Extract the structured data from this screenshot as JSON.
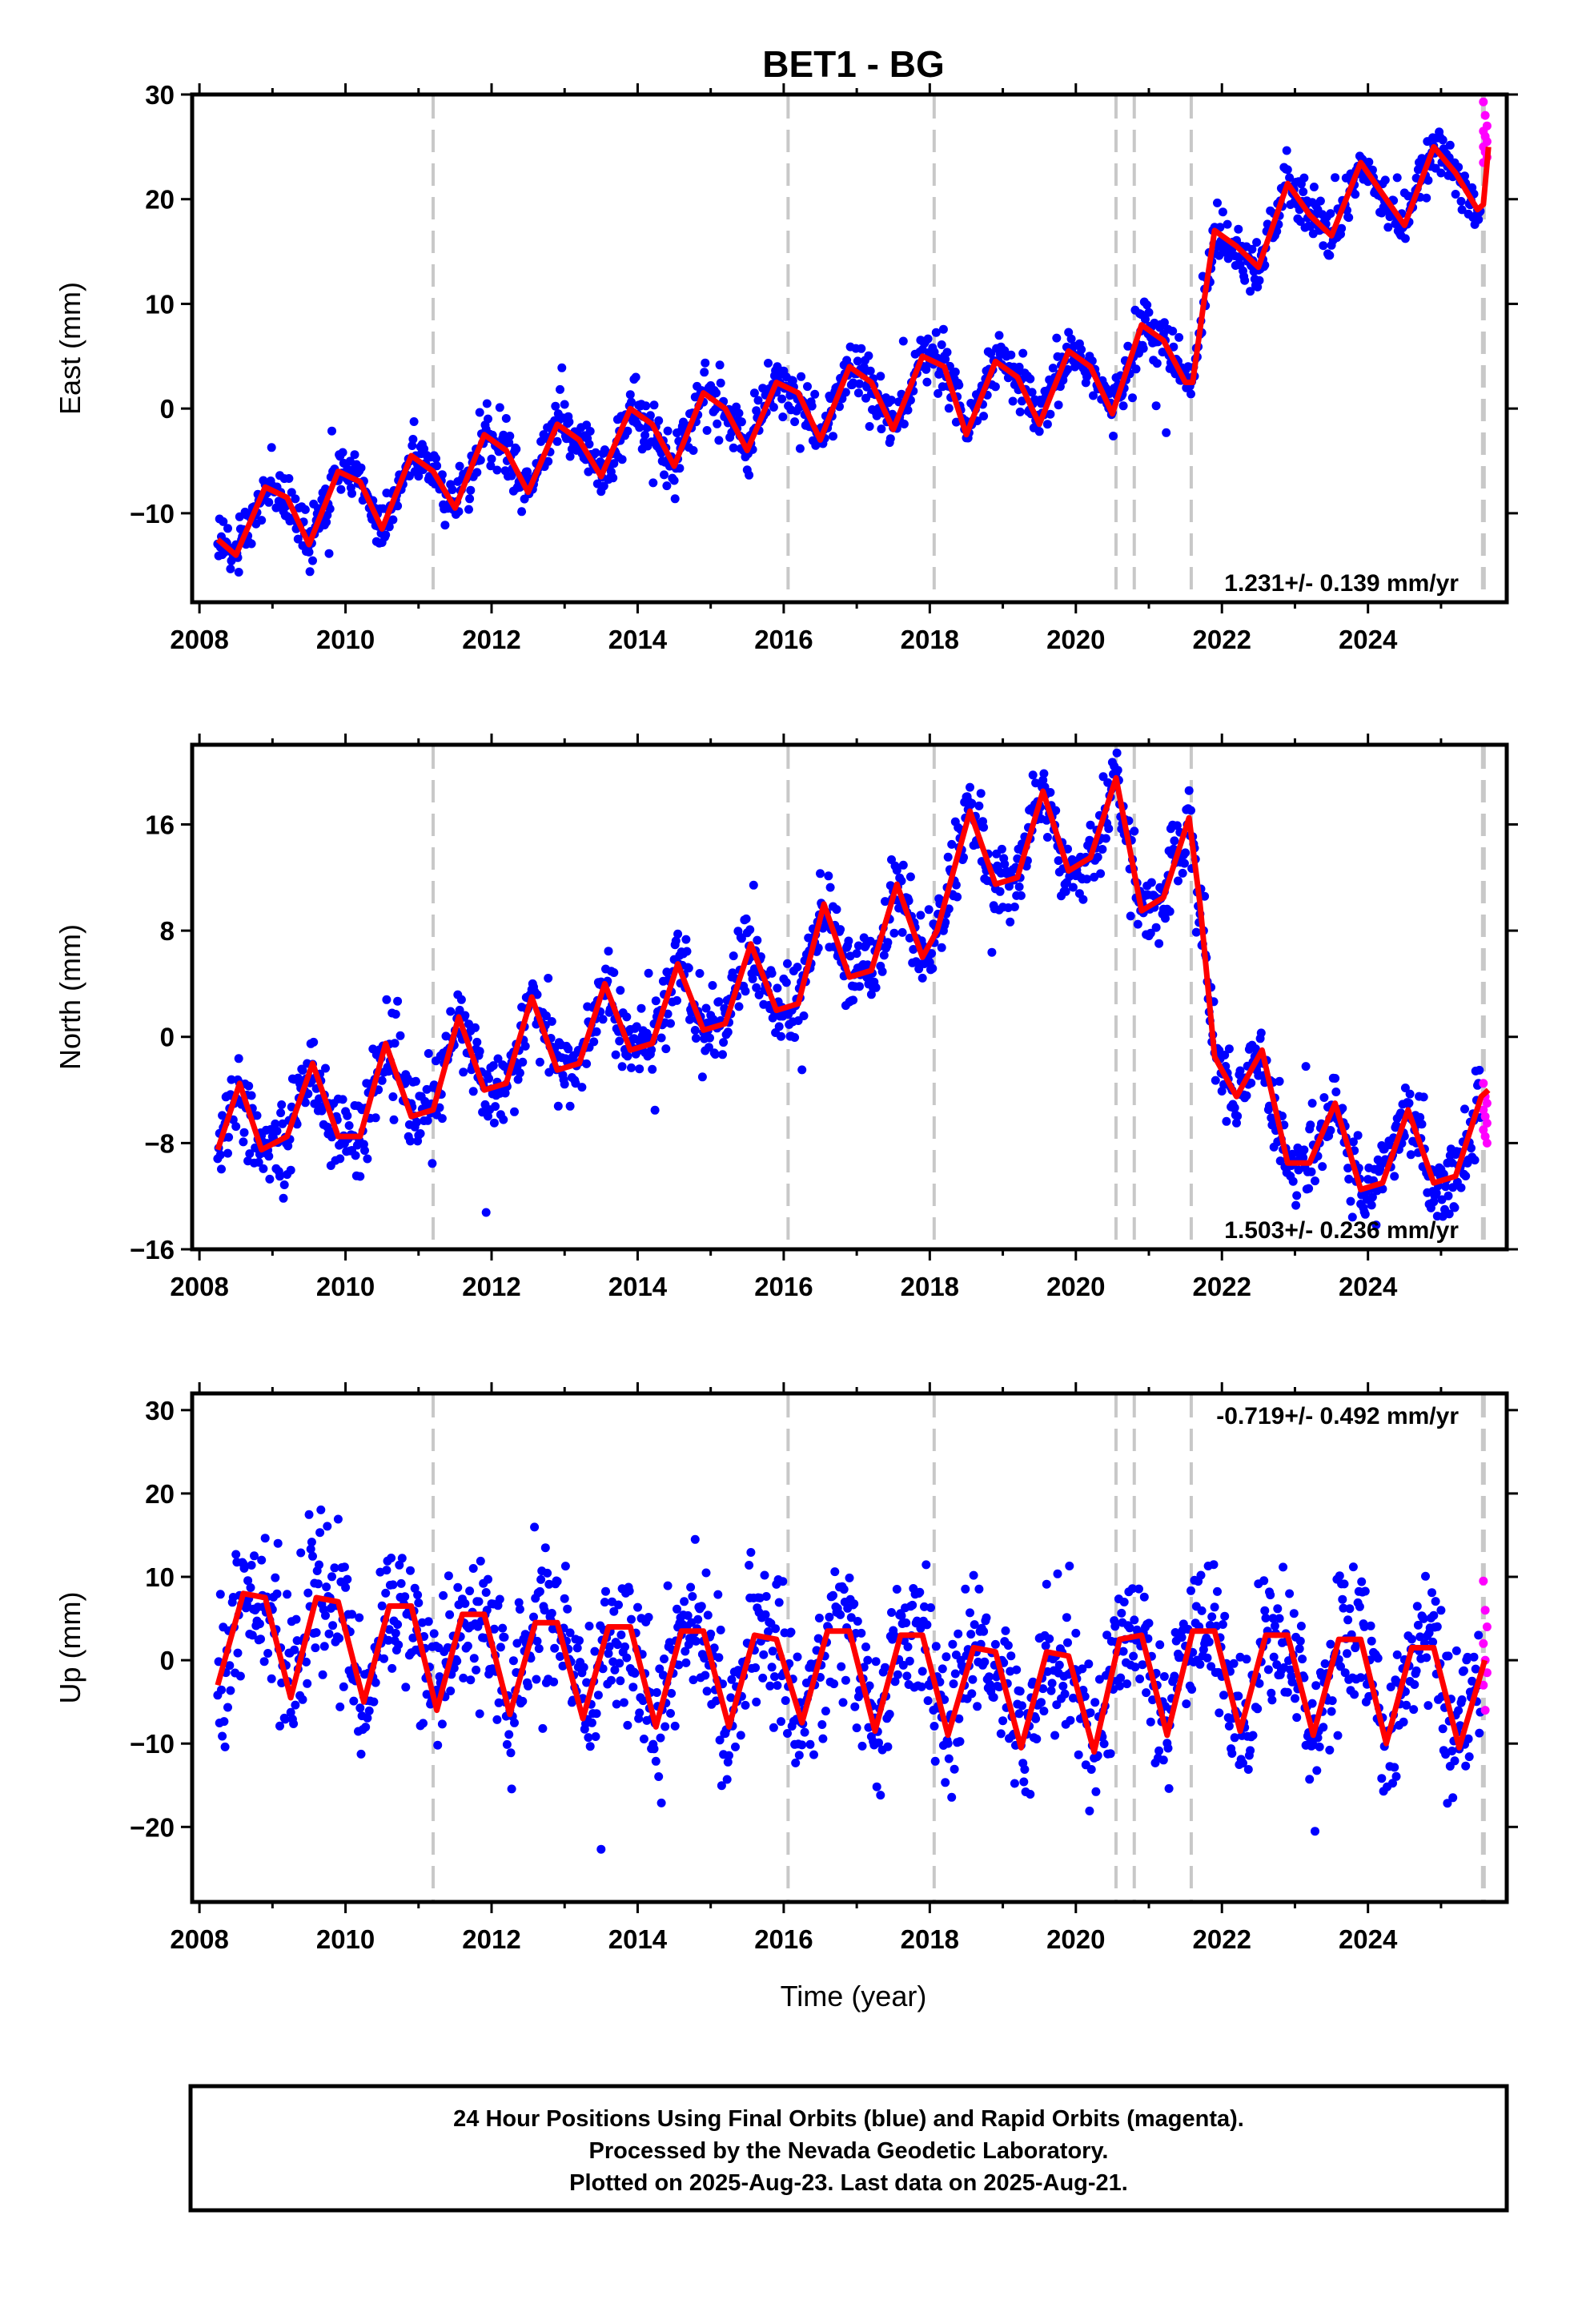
{
  "chart_data": {
    "type": "scatter",
    "title": "BET1 - BG",
    "xlabel": "Time (year)",
    "x_ticks": [
      "2008",
      "2010",
      "2012",
      "2014",
      "2016",
      "2018",
      "2020",
      "2022",
      "2024"
    ],
    "xlim": [
      2007.9,
      2025.9
    ],
    "colors": {
      "final": "#0000ff",
      "rapid": "#ff00ff",
      "model": "#ff0000",
      "steps": "#c8c8c8"
    },
    "step_lines": [
      2011.2,
      2016.06,
      2018.06,
      2020.55,
      2020.8,
      2021.58,
      2025.58
    ],
    "legend": [
      "24 Hour Positions Using Final Orbits (blue) and Rapid Orbits (magenta).",
      "Processed by the Nevada Geodetic Laboratory.",
      "Plotted on 2025-Aug-23. Last data on 2025-Aug-21."
    ],
    "panels": [
      {
        "name": "east",
        "ylabel": "East (mm)",
        "ylim": [
          -18.5,
          30
        ],
        "yticks": [
          "30",
          "20",
          "10",
          "0",
          "-10"
        ],
        "ytick_values": [
          30,
          20,
          10,
          0,
          -10
        ],
        "rate_text": "1.231+/- 0.139 mm/yr",
        "rate_position": "bottom-right",
        "model": [
          [
            2008.25,
            -12.5
          ],
          [
            2008.5,
            -14
          ],
          [
            2008.9,
            -7.5
          ],
          [
            2009.2,
            -8.5
          ],
          [
            2009.5,
            -13
          ],
          [
            2009.9,
            -6
          ],
          [
            2010.2,
            -7
          ],
          [
            2010.5,
            -11.5
          ],
          [
            2010.9,
            -4.5
          ],
          [
            2011.2,
            -6
          ],
          [
            2011.5,
            -9.5
          ],
          [
            2011.9,
            -2.5
          ],
          [
            2012.2,
            -4
          ],
          [
            2012.5,
            -8
          ],
          [
            2012.9,
            -1.5
          ],
          [
            2013.2,
            -3
          ],
          [
            2013.5,
            -6.5
          ],
          [
            2013.9,
            0
          ],
          [
            2014.2,
            -1.5
          ],
          [
            2014.5,
            -5.5
          ],
          [
            2014.9,
            1.5
          ],
          [
            2015.2,
            0
          ],
          [
            2015.5,
            -4
          ],
          [
            2015.9,
            2.5
          ],
          [
            2016.2,
            1.5
          ],
          [
            2016.5,
            -3
          ],
          [
            2016.9,
            4
          ],
          [
            2017.2,
            2.5
          ],
          [
            2017.5,
            -2
          ],
          [
            2017.9,
            5
          ],
          [
            2018.2,
            4
          ],
          [
            2018.5,
            -2.5
          ],
          [
            2018.9,
            4.5
          ],
          [
            2019.2,
            3
          ],
          [
            2019.5,
            -1.5
          ],
          [
            2019.9,
            5.5
          ],
          [
            2020.2,
            4
          ],
          [
            2020.5,
            -0.5
          ],
          [
            2020.9,
            8
          ],
          [
            2021.2,
            6.5
          ],
          [
            2021.5,
            2.5
          ],
          [
            2021.6,
            2.5
          ],
          [
            2021.75,
            10
          ],
          [
            2021.9,
            17
          ],
          [
            2022.2,
            15.5
          ],
          [
            2022.5,
            13.5
          ],
          [
            2022.9,
            21.5
          ],
          [
            2023.2,
            18.5
          ],
          [
            2023.5,
            16.5
          ],
          [
            2023.9,
            23.5
          ],
          [
            2024.2,
            20.5
          ],
          [
            2024.5,
            17.5
          ],
          [
            2024.9,
            25
          ],
          [
            2025.2,
            22.5
          ],
          [
            2025.5,
            19
          ],
          [
            2025.58,
            19.5
          ],
          [
            2025.65,
            25
          ]
        ],
        "scatter_sd": 1.3,
        "rapid": [
          29.3,
          28,
          27,
          26.5,
          26,
          25.5,
          25,
          24.5,
          24,
          23.5
        ]
      },
      {
        "name": "north",
        "ylabel": "North (mm)",
        "ylim": [
          -16,
          22
        ],
        "yticks": [
          "16",
          "8",
          "0",
          "-8",
          "-16"
        ],
        "ytick_values": [
          16,
          8,
          0,
          -8,
          -16
        ],
        "rate_text": "1.503+/- 0.236 mm/yr",
        "rate_position": "bottom-right",
        "model": [
          [
            2008.25,
            -8.5
          ],
          [
            2008.55,
            -3.5
          ],
          [
            2008.85,
            -8.5
          ],
          [
            2009.2,
            -7.5
          ],
          [
            2009.55,
            -2
          ],
          [
            2009.9,
            -7.5
          ],
          [
            2010.2,
            -7.5
          ],
          [
            2010.55,
            -0.5
          ],
          [
            2010.9,
            -6
          ],
          [
            2011.2,
            -5.5
          ],
          [
            2011.55,
            1.5
          ],
          [
            2011.9,
            -4
          ],
          [
            2012.2,
            -3.5
          ],
          [
            2012.55,
            3
          ],
          [
            2012.9,
            -2.5
          ],
          [
            2013.2,
            -2
          ],
          [
            2013.55,
            4
          ],
          [
            2013.9,
            -1
          ],
          [
            2014.2,
            -0.5
          ],
          [
            2014.55,
            5.5
          ],
          [
            2014.9,
            0.5
          ],
          [
            2015.2,
            1
          ],
          [
            2015.55,
            7
          ],
          [
            2015.9,
            2
          ],
          [
            2016.2,
            2.5
          ],
          [
            2016.55,
            10
          ],
          [
            2016.9,
            4.5
          ],
          [
            2017.2,
            5
          ],
          [
            2017.55,
            11.5
          ],
          [
            2017.9,
            6
          ],
          [
            2018.1,
            8
          ],
          [
            2018.3,
            12
          ],
          [
            2018.55,
            17
          ],
          [
            2018.9,
            11.5
          ],
          [
            2019.2,
            12
          ],
          [
            2019.55,
            18.5
          ],
          [
            2019.9,
            12.5
          ],
          [
            2020.2,
            13.5
          ],
          [
            2020.55,
            19.5
          ],
          [
            2020.9,
            9.5
          ],
          [
            2021.2,
            10.5
          ],
          [
            2021.55,
            16.5
          ],
          [
            2021.7,
            10
          ],
          [
            2021.9,
            -1.5
          ],
          [
            2022.2,
            -4.5
          ],
          [
            2022.55,
            -1
          ],
          [
            2022.9,
            -9.5
          ],
          [
            2023.2,
            -9.5
          ],
          [
            2023.55,
            -5
          ],
          [
            2023.9,
            -11.5
          ],
          [
            2024.2,
            -11
          ],
          [
            2024.55,
            -5.5
          ],
          [
            2024.9,
            -11
          ],
          [
            2025.2,
            -10.5
          ],
          [
            2025.55,
            -4.5
          ],
          [
            2025.65,
            -4
          ]
        ],
        "scatter_sd": 1.5,
        "rapid": [
          -3.5,
          -4.5,
          -5,
          -5.5,
          -6,
          -6.5,
          -7,
          -7.5,
          -8
        ]
      },
      {
        "name": "up",
        "ylabel": "Up (mm)",
        "ylim": [
          -29,
          32
        ],
        "yticks": [
          "30",
          "20",
          "10",
          "0",
          "-10",
          "-20"
        ],
        "ytick_values": [
          30,
          20,
          10,
          0,
          -10,
          -20
        ],
        "rate_text": "-0.719+/- 0.492 mm/yr",
        "rate_position": "top-right",
        "model": [
          [
            2008.25,
            -3
          ],
          [
            2008.6,
            8
          ],
          [
            2008.9,
            7.5
          ],
          [
            2009.25,
            -4.5
          ],
          [
            2009.6,
            7.5
          ],
          [
            2009.9,
            7
          ],
          [
            2010.25,
            -5
          ],
          [
            2010.6,
            6.5
          ],
          [
            2010.9,
            6.5
          ],
          [
            2011.25,
            -6
          ],
          [
            2011.6,
            5.5
          ],
          [
            2011.9,
            5.5
          ],
          [
            2012.25,
            -6.5
          ],
          [
            2012.6,
            4.5
          ],
          [
            2012.9,
            4.5
          ],
          [
            2013.25,
            -7
          ],
          [
            2013.6,
            4
          ],
          [
            2013.9,
            4
          ],
          [
            2014.25,
            -8
          ],
          [
            2014.6,
            3.5
          ],
          [
            2014.9,
            3.5
          ],
          [
            2015.25,
            -8
          ],
          [
            2015.6,
            3
          ],
          [
            2015.9,
            2.5
          ],
          [
            2016.25,
            -7.5
          ],
          [
            2016.6,
            3.5
          ],
          [
            2016.9,
            3.5
          ],
          [
            2017.25,
            -8.5
          ],
          [
            2017.6,
            3
          ],
          [
            2017.9,
            3
          ],
          [
            2018.25,
            -9
          ],
          [
            2018.6,
            1.5
          ],
          [
            2018.9,
            1
          ],
          [
            2019.25,
            -10.5
          ],
          [
            2019.6,
            1
          ],
          [
            2019.9,
            0.5
          ],
          [
            2020.25,
            -11
          ],
          [
            2020.6,
            2.5
          ],
          [
            2020.9,
            3
          ],
          [
            2021.25,
            -9
          ],
          [
            2021.6,
            3.5
          ],
          [
            2021.9,
            3.5
          ],
          [
            2022.25,
            -8.5
          ],
          [
            2022.6,
            3
          ],
          [
            2022.9,
            3
          ],
          [
            2023.25,
            -9
          ],
          [
            2023.6,
            2.5
          ],
          [
            2023.9,
            2.5
          ],
          [
            2024.25,
            -10
          ],
          [
            2024.6,
            1.5
          ],
          [
            2024.9,
            1.5
          ],
          [
            2025.25,
            -10.5
          ],
          [
            2025.6,
            0
          ]
        ],
        "scatter_sd": 4.2,
        "rapid": [
          9.5,
          6,
          4,
          2,
          0,
          -1.5,
          -3,
          -6
        ]
      }
    ]
  }
}
